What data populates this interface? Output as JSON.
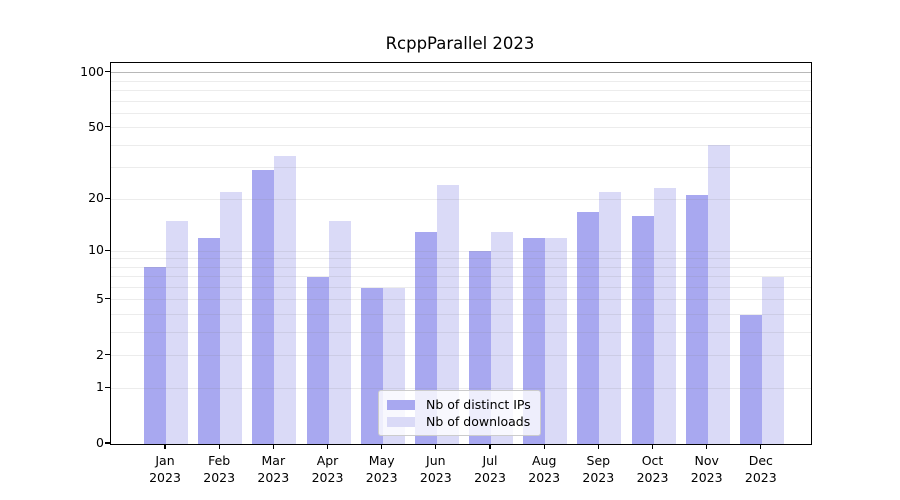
{
  "chart_data": {
    "type": "bar",
    "title": "RcppParallel 2023",
    "categories": [
      "Jan 2023",
      "Feb 2023",
      "Mar 2023",
      "Apr 2023",
      "May 2023",
      "Jun 2023",
      "Jul 2023",
      "Aug 2023",
      "Sep 2023",
      "Oct 2023",
      "Nov 2023",
      "Dec 2023"
    ],
    "x_tick_months": [
      "Jan",
      "Feb",
      "Mar",
      "Apr",
      "May",
      "Jun",
      "Jul",
      "Aug",
      "Sep",
      "Oct",
      "Nov",
      "Dec"
    ],
    "x_tick_year": "2023",
    "series": [
      {
        "name": "Nb of distinct IPs",
        "color": "#a8a8f0",
        "values": [
          8,
          12,
          29,
          7,
          6,
          13,
          10,
          12,
          17,
          16,
          21,
          4
        ]
      },
      {
        "name": "Nb of downloads",
        "color": "#dadaf7",
        "values": [
          15,
          22,
          35,
          15,
          6,
          24,
          13,
          12,
          22,
          23,
          40,
          7
        ]
      }
    ],
    "yscale": "log1p",
    "ylim": [
      0,
      113
    ],
    "ytick_values": [
      100,
      50,
      20,
      10,
      5,
      2,
      1,
      0
    ],
    "ytick_labels": [
      "100",
      "50",
      "20",
      "10",
      "5",
      "2",
      "1",
      "0"
    ],
    "grid_minor_values": [
      1,
      2,
      3,
      4,
      5,
      6,
      7,
      8,
      9,
      10,
      20,
      30,
      40,
      50,
      60,
      70,
      80,
      90
    ],
    "grid_major_values": [
      100
    ],
    "grid": "on",
    "legend_position": "inside-bottom-center",
    "colors": {
      "bar_distinct_ips": "#a8a8f0",
      "bar_downloads": "#dadaf7",
      "grid_minor": "#ececec",
      "grid_major": "#bdbdbd",
      "axis": "#000000",
      "text": "#000000",
      "background": "#ffffff"
    }
  }
}
